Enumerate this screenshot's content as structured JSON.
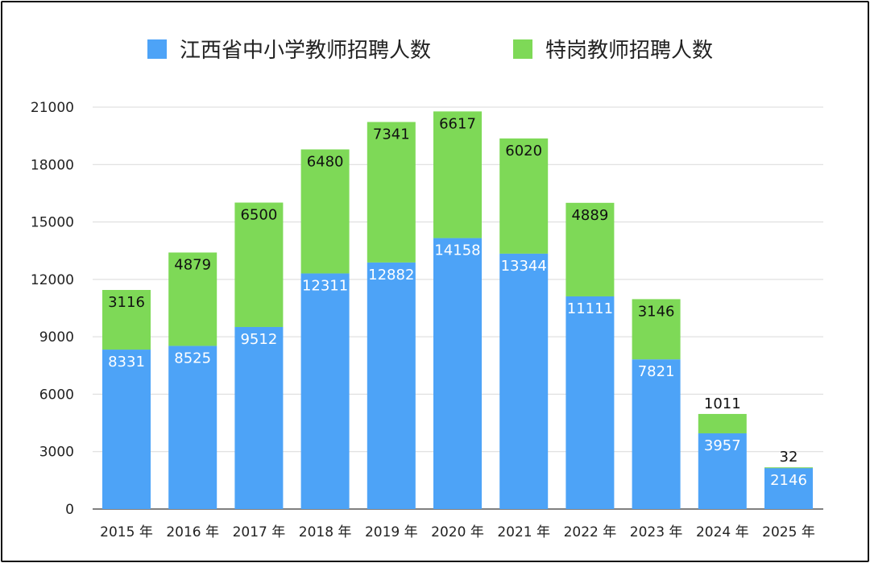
{
  "chart_data": {
    "type": "bar",
    "stacked": true,
    "categories": [
      "2015 年",
      "2016 年",
      "2017 年",
      "2018 年",
      "2019 年",
      "2020 年",
      "2021 年",
      "2022 年",
      "2023 年",
      "2024 年",
      "2025 年"
    ],
    "series": [
      {
        "name": "江西省中小学教师招聘人数",
        "color": "#4da3f7",
        "label_color": "#ffffff",
        "values": [
          8331,
          8525,
          9512,
          12311,
          12882,
          14158,
          13344,
          11111,
          7821,
          3957,
          2146
        ],
        "labels": [
          "8331",
          "8525",
          "9512",
          "12311",
          "12882",
          "14158",
          "13344",
          "11111",
          "7821",
          "3957",
          "2146"
        ]
      },
      {
        "name": "特岗教师招聘人数",
        "color": "#7ed957",
        "label_color": "#111111",
        "values": [
          3116,
          4879,
          6500,
          6480,
          7341,
          6617,
          6020,
          4889,
          3146,
          1011,
          32
        ],
        "labels": [
          "3116",
          "4879",
          "6500",
          "6480",
          "7341",
          "6617",
          "6020",
          "4889",
          "3146",
          "1011",
          "32"
        ]
      }
    ],
    "yticks": [
      0,
      3000,
      6000,
      9000,
      12000,
      15000,
      18000,
      21000
    ],
    "ytick_labels": [
      "0",
      "3000",
      "6000",
      "9000",
      "12000",
      "15000",
      "18000",
      "21000"
    ],
    "ylim": [
      0,
      21000
    ],
    "grid": true,
    "legend_position": "top-center"
  }
}
